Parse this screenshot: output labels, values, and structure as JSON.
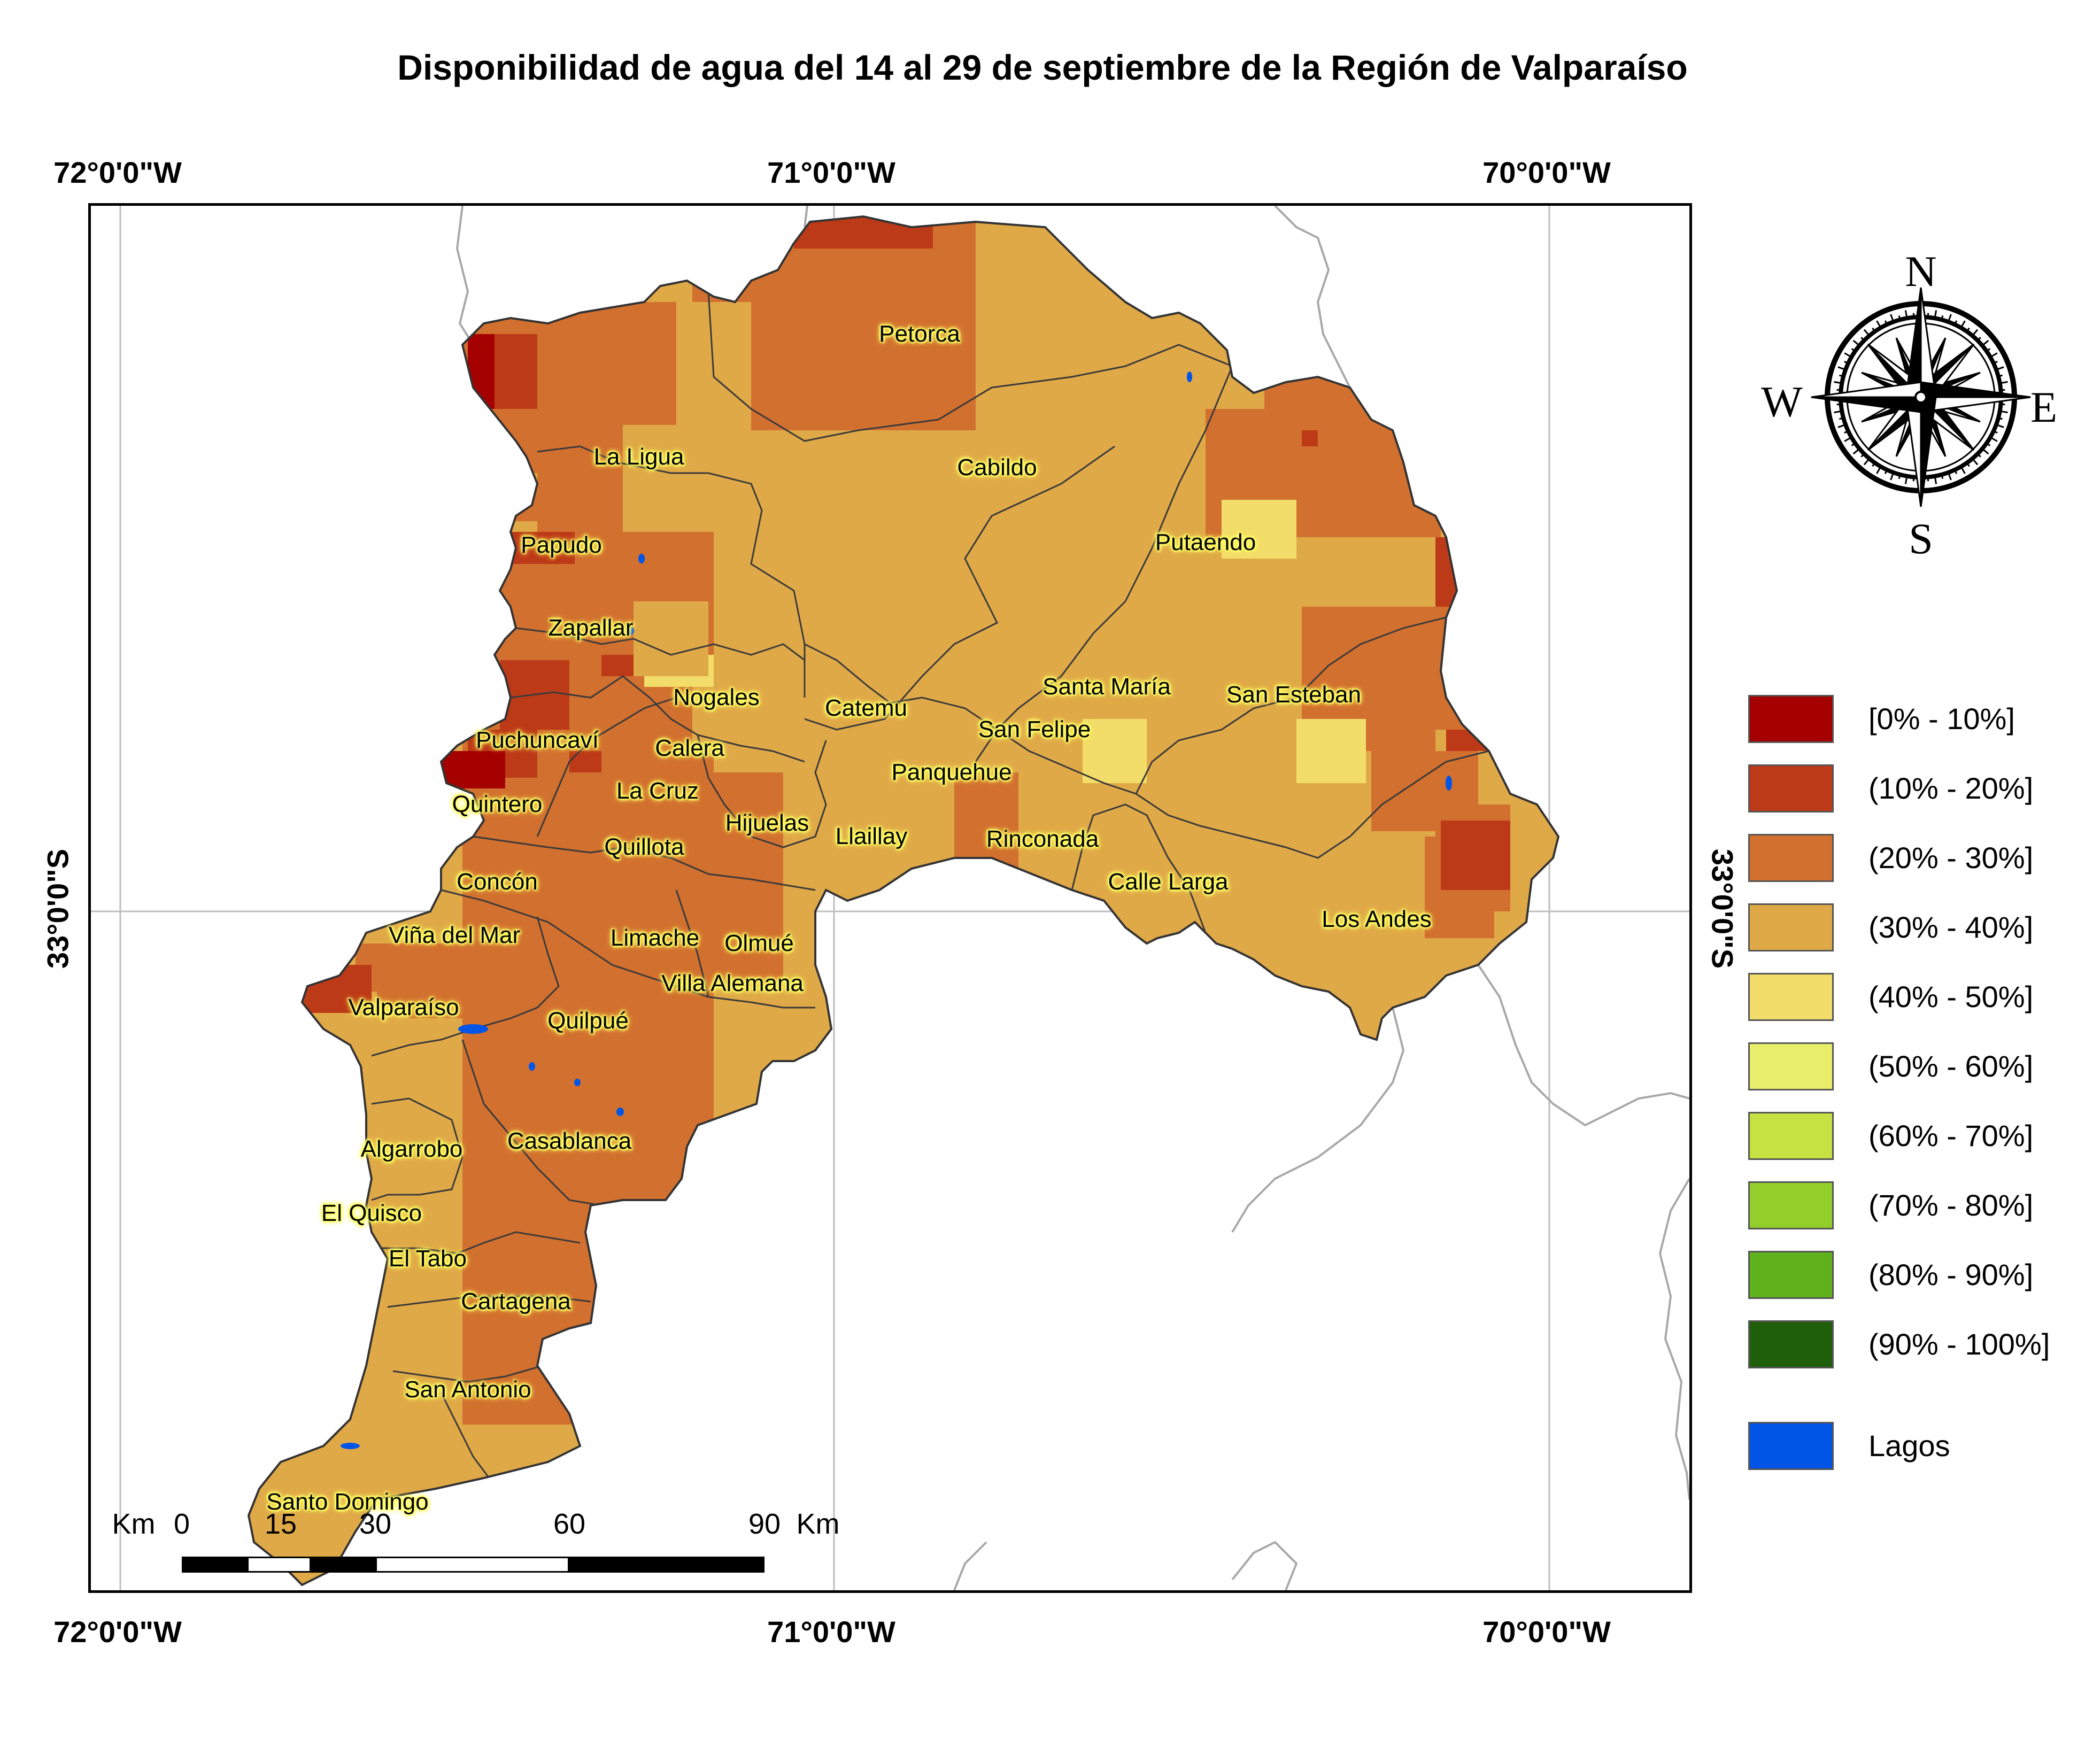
{
  "title": "Disponibilidad de agua del 14 al 29 de septiembre de la Región de Valparaíso",
  "coords": {
    "top": [
      "72°0'0\"W",
      "71°0'0\"W",
      "70°0'0\"W"
    ],
    "bottom": [
      "72°0'0\"W",
      "71°0'0\"W",
      "70°0'0\"W"
    ],
    "left": "33°0'0\"S",
    "right": "33°0'0\"S"
  },
  "places": [
    "Petorca",
    "La Ligua",
    "Cabildo",
    "Papudo",
    "Putaendo",
    "Zapallar",
    "Nogales",
    "Catemu",
    "Santa María",
    "San Esteban",
    "Puchuncaví",
    "Calera",
    "San Felipe",
    "Panquehue",
    "La Cruz",
    "Quintero",
    "Hijuelas",
    "Quillota",
    "Llaillay",
    "Rinconada",
    "Concón",
    "Calle Larga",
    "Los Andes",
    "Viña del Mar",
    "Limache",
    "Olmué",
    "Villa Alemana",
    "Valparaíso",
    "Quilpué",
    "Algarrobo",
    "Casablanca",
    "El Quisco",
    "El Tabo",
    "Cartagena",
    "San Antonio",
    "Santo Domingo"
  ],
  "compass": {
    "n": "N",
    "s": "S",
    "e": "E",
    "w": "W",
    "icon": "compass-rose-icon"
  },
  "legend": {
    "classes": [
      {
        "label": "[0% - 10%]",
        "color": "#a50000"
      },
      {
        "label": "(10% - 20%]",
        "color": "#bd3a18"
      },
      {
        "label": "(20% - 30%]",
        "color": "#d2702f"
      },
      {
        "label": "(30% - 40%]",
        "color": "#e0a948"
      },
      {
        "label": "(40% - 50%]",
        "color": "#f2dd6a"
      },
      {
        "label": "(50% - 60%]",
        "color": "#e9ee6a"
      },
      {
        "label": "(60% - 70%]",
        "color": "#c6e142"
      },
      {
        "label": "(70% - 80%]",
        "color": "#93cf2b"
      },
      {
        "label": "(80% - 90%]",
        "color": "#5fb21c"
      },
      {
        "label": "(90% - 100%]",
        "color": "#1f5f0a"
      }
    ],
    "lakes": {
      "label": "Lagos",
      "color": "#0055e6"
    }
  },
  "scalebar": {
    "unit": "Km",
    "ticks": [
      "0",
      "15",
      "30",
      "60",
      "90"
    ]
  }
}
